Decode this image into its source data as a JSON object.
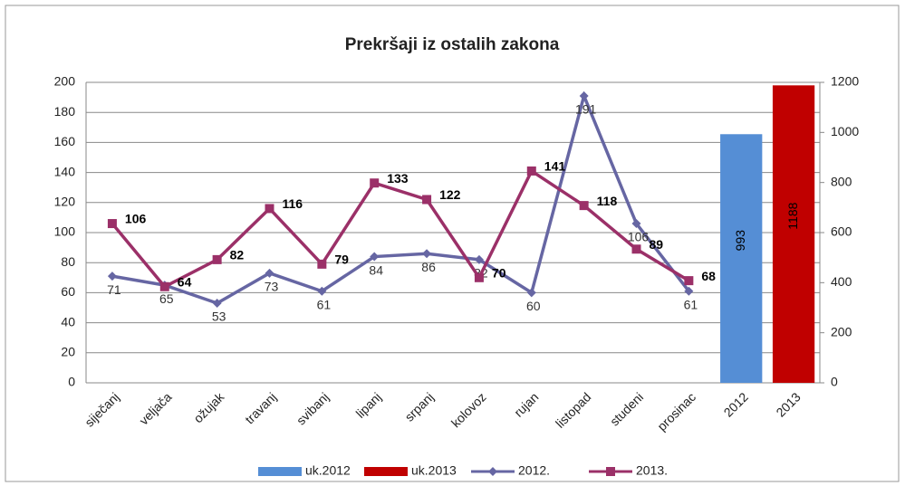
{
  "chart_data": {
    "type": "combo",
    "title": "Prekršaji iz ostalih zakona",
    "categories": [
      "siječanj",
      "veljača",
      "ožujak",
      "travanj",
      "svibanj",
      "lipanj",
      "srpanj",
      "kolovoz",
      "rujan",
      "listopad",
      "studeni",
      "prosinac",
      "2012",
      "2013"
    ],
    "series": [
      {
        "name": "uk.2012",
        "type": "bar",
        "axis": "y2",
        "color": "#558ed5",
        "values": [
          null,
          null,
          null,
          null,
          null,
          null,
          null,
          null,
          null,
          null,
          null,
          null,
          993,
          null
        ]
      },
      {
        "name": "uk.2013",
        "type": "bar",
        "axis": "y2",
        "color": "#c00000",
        "values": [
          null,
          null,
          null,
          null,
          null,
          null,
          null,
          null,
          null,
          null,
          null,
          null,
          null,
          1188
        ]
      },
      {
        "name": "2012.",
        "type": "line",
        "color": "#6666a3",
        "values": [
          71,
          65,
          53,
          73,
          61,
          84,
          86,
          82,
          60,
          191,
          106,
          61,
          null,
          null
        ]
      },
      {
        "name": "2013.",
        "type": "line",
        "color": "#9b3068",
        "values": [
          106,
          64,
          82,
          116,
          79,
          133,
          122,
          70,
          141,
          118,
          89,
          68,
          null,
          null
        ]
      }
    ],
    "ylim": [
      0,
      200
    ],
    "yticks": [
      0,
      20,
      40,
      60,
      80,
      100,
      120,
      140,
      160,
      180,
      200
    ],
    "y2lim": [
      0,
      1200
    ],
    "y2ticks": [
      0,
      200,
      400,
      600,
      800,
      1000,
      1200
    ],
    "grid": true,
    "legend": "bottom"
  }
}
